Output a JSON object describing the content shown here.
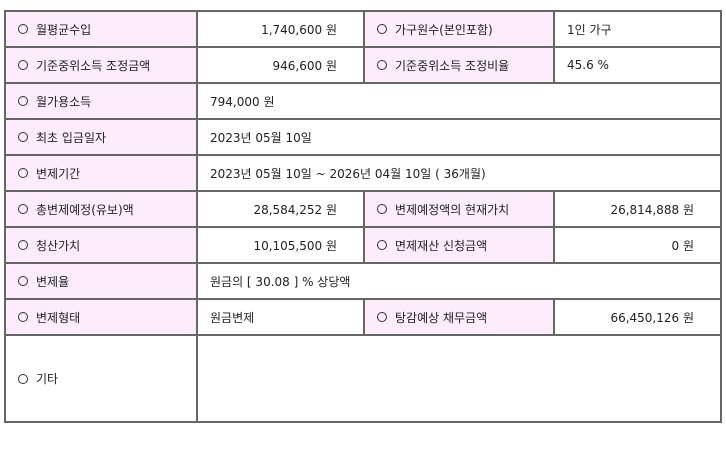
{
  "colors": {
    "label_bg": "#fcecfc",
    "border": "#666666"
  },
  "rows": [
    {
      "label1": "월평균수입",
      "value1": "1,740,600 원",
      "label2": "가구원수(본인포함)",
      "value2": "1인 가구"
    },
    {
      "label1": "기준중위소득 조정금액",
      "value1": "946,600 원",
      "label2": "기준중위소득 조정비율",
      "value2": "45.6 %"
    },
    {
      "label1": "월가용소득",
      "value1": "794,000 원"
    },
    {
      "label1": "최초 입금일자",
      "value1": "2023년 05월 10일"
    },
    {
      "label1": "변제기간",
      "value1": "2023년 05월 10일 ~ 2026년 04월 10일 ( 36개월)"
    },
    {
      "label1": "총변제예정(유보)액",
      "value1": "28,584,252 원",
      "label2": "변제예정액의 현재가치",
      "value2": "26,814,888 원"
    },
    {
      "label1": "청산가치",
      "value1": "10,105,500 원",
      "label2": "면제재산 신청금액",
      "value2": "0 원"
    },
    {
      "label1": "변제율",
      "value1": "원금의 [ 30.08 ] % 상당액"
    },
    {
      "label1": "변제형태",
      "value1": "원금변제",
      "label2": "탕감예상 채무금액",
      "value2": "66,450,126 원"
    },
    {
      "label1": "기타",
      "value1": ""
    }
  ]
}
